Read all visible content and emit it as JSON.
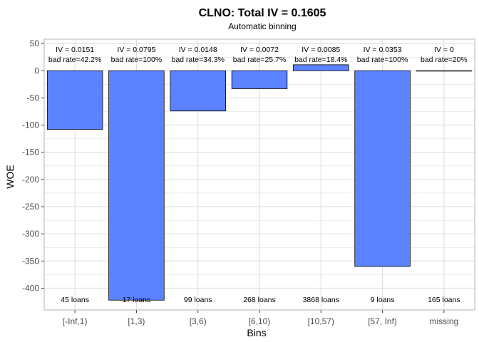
{
  "chart_data": {
    "type": "bar",
    "title": "CLNO: Total IV = 0.1605",
    "subtitle": "Automatic binning",
    "xlabel": "Bins",
    "ylabel": "WOE",
    "ylim": [
      -440,
      58
    ],
    "yticks": [
      50,
      0,
      -50,
      -100,
      -150,
      -200,
      -250,
      -300,
      -350,
      -400
    ],
    "categories": [
      "[-Inf,1)",
      "[1,3)",
      "[3,6)",
      "[6,10)",
      "[10,57)",
      "[57, Inf)",
      "missing"
    ],
    "values": [
      -108,
      -422,
      -74,
      -33,
      11,
      -360,
      0
    ],
    "iv_labels": [
      "IV = 0.0151",
      "IV = 0.0795",
      "IV = 0.0148",
      "IV = 0.0072",
      "IV = 0.0085",
      "IV = 0.0353",
      "IV = 0"
    ],
    "bad_rate_labels": [
      "bad rate=42.2%",
      "bad rate=100%",
      "bad rate=34.3%",
      "bad rate=25.7%",
      "bad rate=18.4%",
      "bad rate=100%",
      "bad rate=20%"
    ],
    "loan_labels": [
      "45 loans",
      "17 loans",
      "99 loans",
      "268 loans",
      "3868 loans",
      "9 loans",
      "165 loans"
    ],
    "grid": true,
    "colors": {
      "bar_fill": "#5b82ff",
      "bar_stroke": "#000000",
      "grid": "#dedede",
      "panel_border": "#b3b3b3",
      "tick_text": "#4d4d4d"
    }
  }
}
